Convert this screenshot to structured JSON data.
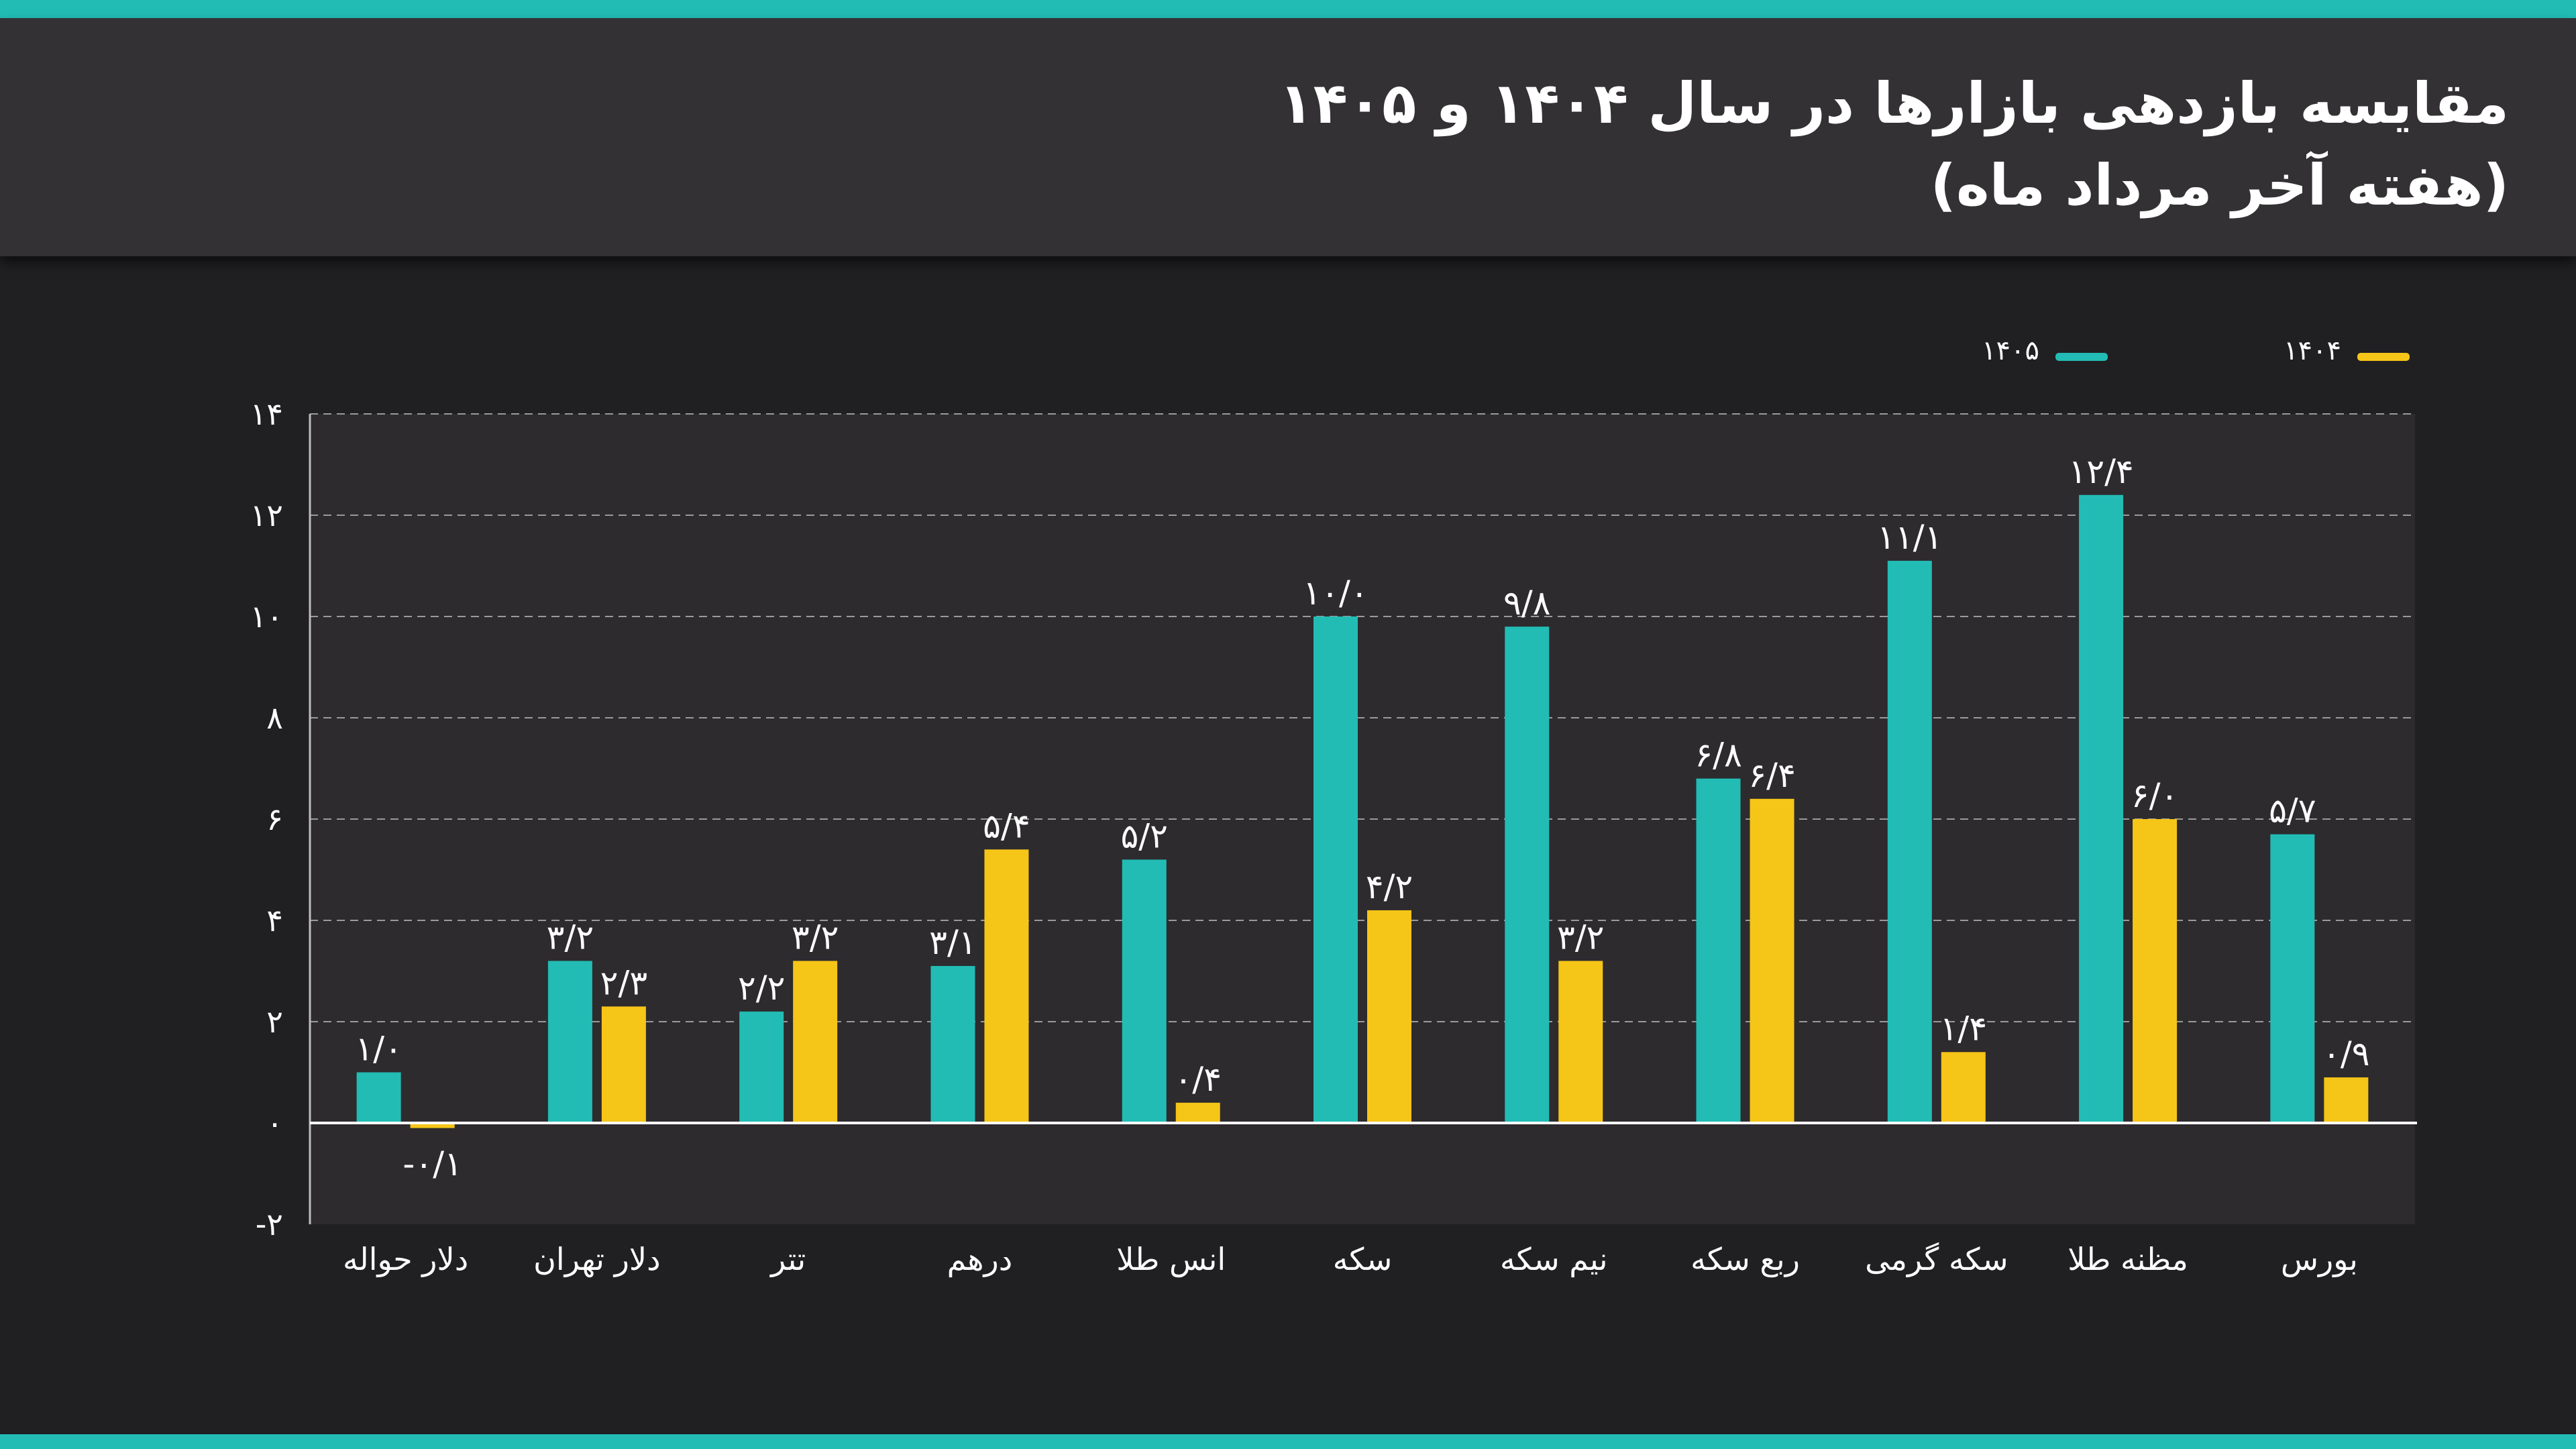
{
  "header": {
    "title": "مقایسه بازدهی بازارها در سال ۱۴۰۴ و ۱۴۰۵",
    "subtitle": "(هفته آخر مرداد ماه)"
  },
  "colors": {
    "series_1405": "#22bcb5",
    "series_1404": "#f5c518",
    "plot_background": "#2d2b2e",
    "page_background": "#201f21",
    "header_background": "#333134",
    "stripe": "#22bcb5"
  },
  "chart_data": {
    "type": "bar",
    "title": "مقایسه بازدهی بازارها در سال ۱۴۰۴ و ۱۴۰۵",
    "subtitle": "(هفته آخر مرداد ماه)",
    "xlabel": "",
    "ylabel": "",
    "ylim": [
      -2,
      14
    ],
    "yticks": [
      -2,
      0,
      2,
      4,
      6,
      8,
      10,
      12,
      14
    ],
    "ytick_labels": [
      "-۲",
      "۰",
      "۲",
      "۴",
      "۶",
      "۸",
      "۱۰",
      "۱۲",
      "۱۴"
    ],
    "grid": true,
    "legend_position": "top-right",
    "categories": [
      "دلار حواله",
      "دلار تهران",
      "تتر",
      "درهم",
      "انس طلا",
      "سکه",
      "نیم سکه",
      "ربع سکه",
      "سکه گرمی",
      "مظنه طلا",
      "بورس"
    ],
    "series": [
      {
        "name": "۱۴۰۵",
        "color": "#22bcb5",
        "values": [
          1.0,
          3.2,
          2.2,
          3.1,
          5.2,
          10.0,
          9.8,
          6.8,
          11.1,
          12.4,
          5.7
        ],
        "labels": [
          "۱/۰",
          "۳/۲",
          "۲/۲",
          "۳/۱",
          "۵/۲",
          "۱۰/۰",
          "۹/۸",
          "۶/۸",
          "۱۱/۱",
          "۱۲/۴",
          "۵/۷"
        ]
      },
      {
        "name": "۱۴۰۴",
        "color": "#f5c518",
        "values": [
          -0.1,
          2.3,
          3.2,
          5.4,
          0.4,
          4.2,
          3.2,
          6.4,
          1.4,
          6.0,
          0.9
        ],
        "labels": [
          "-۰/۱",
          "۲/۳",
          "۳/۲",
          "۵/۴",
          "۰/۴",
          "۴/۲",
          "۳/۲",
          "۶/۴",
          "۱/۴",
          "۶/۰",
          "۰/۹"
        ]
      }
    ]
  }
}
